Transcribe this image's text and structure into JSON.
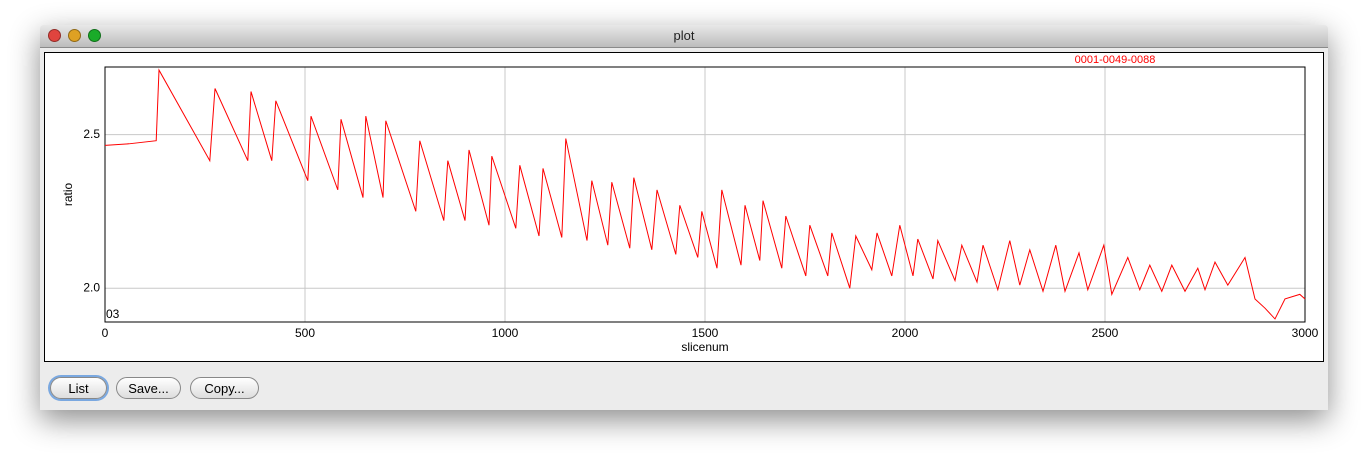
{
  "window": {
    "title": "plot",
    "buttons": [
      "List",
      "Save...",
      "Copy..."
    ]
  },
  "chart_data": {
    "type": "line",
    "x_label": "slicenum",
    "y_label": "ratio",
    "annotation": "03",
    "x": [
      0,
      60,
      128,
      135,
      262,
      275,
      357,
      365,
      417,
      427,
      507,
      515,
      582,
      590,
      645,
      652,
      695,
      702,
      777,
      787,
      847,
      857,
      900,
      910,
      960,
      967,
      1027,
      1037,
      1085,
      1095,
      1142,
      1152,
      1205,
      1217,
      1257,
      1267,
      1312,
      1322,
      1367,
      1380,
      1427,
      1437,
      1482,
      1492,
      1530,
      1542,
      1590,
      1600,
      1637,
      1645,
      1692,
      1702,
      1752,
      1762,
      1807,
      1817,
      1862,
      1877,
      1917,
      1930,
      1967,
      1987,
      2020,
      2032,
      2070,
      2082,
      2125,
      2142,
      2180,
      2195,
      2232,
      2262,
      2287,
      2312,
      2345,
      2377,
      2400,
      2435,
      2457,
      2497,
      2517,
      2557,
      2587,
      2612,
      2642,
      2667,
      2700,
      2732,
      2750,
      2775,
      2807,
      2850,
      2875,
      2900,
      2925,
      2950,
      2987,
      3000
    ],
    "series": [
      {
        "name": "0001-0049-0088",
        "color": "#ff0000",
        "values": [
          2.465,
          2.47,
          2.48,
          2.71,
          2.415,
          2.65,
          2.415,
          2.64,
          2.415,
          2.61,
          2.35,
          2.56,
          2.32,
          2.55,
          2.295,
          2.56,
          2.295,
          2.545,
          2.25,
          2.48,
          2.22,
          2.415,
          2.22,
          2.45,
          2.205,
          2.43,
          2.195,
          2.4,
          2.17,
          2.39,
          2.165,
          2.487,
          2.155,
          2.35,
          2.14,
          2.345,
          2.13,
          2.36,
          2.125,
          2.32,
          2.11,
          2.27,
          2.1,
          2.25,
          2.065,
          2.32,
          2.075,
          2.27,
          2.09,
          2.285,
          2.065,
          2.235,
          2.04,
          2.205,
          2.04,
          2.18,
          2.0,
          2.17,
          2.06,
          2.18,
          2.04,
          2.205,
          2.04,
          2.16,
          2.03,
          2.155,
          2.025,
          2.14,
          2.02,
          2.14,
          1.995,
          2.155,
          2.01,
          2.125,
          1.99,
          2.14,
          1.99,
          2.115,
          1.995,
          2.14,
          1.98,
          2.1,
          1.995,
          2.075,
          1.99,
          2.075,
          1.99,
          2.065,
          1.995,
          2.085,
          2.01,
          2.1,
          1.965,
          1.935,
          1.9,
          1.965,
          1.98,
          1.965
        ]
      }
    ],
    "xlim": [
      0,
      3000
    ],
    "ylim": [
      1.89,
      2.72
    ],
    "xticks": [
      0,
      500,
      1000,
      1500,
      2000,
      2500,
      3000
    ],
    "yticks": [
      {
        "value": 2,
        "label": "2.0"
      },
      2.5
    ],
    "grid": true
  }
}
